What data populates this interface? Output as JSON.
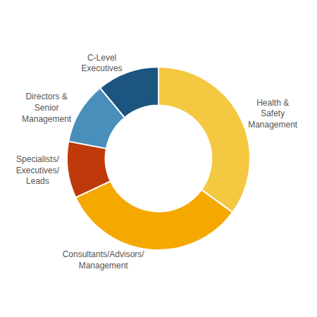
{
  "chart_data": {
    "type": "donut",
    "categories": [
      "Health &\nSafety\nManagement",
      "Consultants/Advisors/\nManagement",
      "Specialists/\nExecutives/\nLeads",
      "Directors &\nSenior\nManagement",
      "C-Level\nExecutives"
    ],
    "values": [
      35,
      33,
      10,
      11,
      11
    ],
    "colors": [
      "#F5C842",
      "#F5A800",
      "#C0390B",
      "#4A8FBB",
      "#1B5580"
    ]
  }
}
